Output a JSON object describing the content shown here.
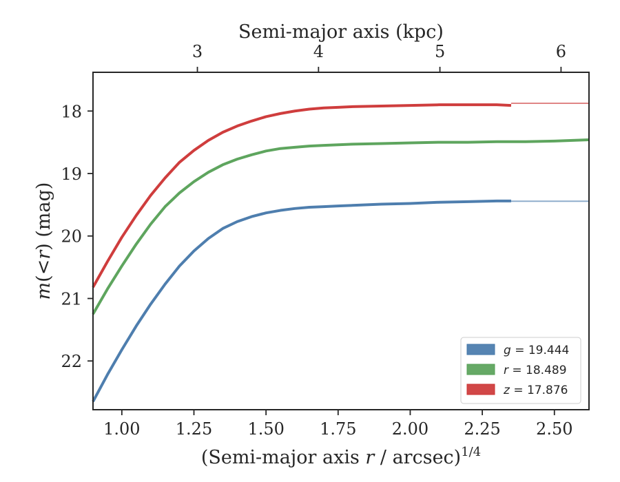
{
  "chart_data": {
    "type": "line",
    "top_axis_label": "Semi-major axis (kpc)",
    "xlabel": {
      "prefix": "(Semi-major axis ",
      "var": "r",
      "suffix": " / arcsec)",
      "sup": "1/4"
    },
    "ylabel": {
      "var1": "m",
      "mid": "(<",
      "var2": "r",
      "suffix": ") (mag)"
    },
    "xlim": [
      0.9,
      2.62
    ],
    "ylim": [
      22.78,
      17.38
    ],
    "y_inverted": true,
    "x_ticks": [
      {
        "value": 1.0,
        "label": "1.00"
      },
      {
        "value": 1.25,
        "label": "1.25"
      },
      {
        "value": 1.5,
        "label": "1.50"
      },
      {
        "value": 1.75,
        "label": "1.75"
      },
      {
        "value": 2.0,
        "label": "2.00"
      },
      {
        "value": 2.25,
        "label": "2.25"
      },
      {
        "value": 2.5,
        "label": "2.50"
      }
    ],
    "y_ticks": [
      {
        "value": 18,
        "label": "18"
      },
      {
        "value": 19,
        "label": "19"
      },
      {
        "value": 20,
        "label": "20"
      },
      {
        "value": 21,
        "label": "21"
      },
      {
        "value": 22,
        "label": "22"
      }
    ],
    "top_ticks": [
      {
        "x": 1.262,
        "label": "3"
      },
      {
        "x": 1.682,
        "label": "4"
      },
      {
        "x": 2.103,
        "label": "5"
      },
      {
        "x": 2.523,
        "label": "6"
      }
    ],
    "grid": false,
    "legend_position": "lower-right",
    "series": [
      {
        "name": "g",
        "legend_value": "19.444",
        "color": "#4477aa",
        "x": [
          0.9,
          0.95,
          1.0,
          1.05,
          1.1,
          1.15,
          1.2,
          1.25,
          1.3,
          1.35,
          1.4,
          1.45,
          1.5,
          1.55,
          1.6,
          1.65,
          1.7,
          1.75,
          1.8,
          1.9,
          2.0,
          2.1,
          2.2,
          2.3,
          2.35
        ],
        "y": [
          22.65,
          22.22,
          21.82,
          21.44,
          21.09,
          20.77,
          20.48,
          20.24,
          20.04,
          19.88,
          19.77,
          19.69,
          19.63,
          19.59,
          19.56,
          19.54,
          19.53,
          19.52,
          19.51,
          19.49,
          19.48,
          19.46,
          19.45,
          19.44,
          19.44
        ],
        "extrap_x": [
          2.35,
          2.62
        ],
        "extrap_y": [
          19.444,
          19.444
        ]
      },
      {
        "name": "r",
        "legend_value": "18.489",
        "color": "#55a055",
        "x": [
          0.9,
          0.95,
          1.0,
          1.05,
          1.1,
          1.15,
          1.2,
          1.25,
          1.3,
          1.35,
          1.4,
          1.45,
          1.5,
          1.55,
          1.6,
          1.65,
          1.7,
          1.75,
          1.8,
          1.9,
          2.0,
          2.1,
          2.2,
          2.3,
          2.4,
          2.5,
          2.62
        ],
        "y": [
          21.25,
          20.85,
          20.48,
          20.13,
          19.81,
          19.53,
          19.31,
          19.13,
          18.98,
          18.86,
          18.77,
          18.7,
          18.64,
          18.6,
          18.58,
          18.56,
          18.55,
          18.54,
          18.53,
          18.52,
          18.51,
          18.5,
          18.5,
          18.49,
          18.49,
          18.48,
          18.46
        ]
      },
      {
        "name": "z",
        "legend_value": "17.876",
        "color": "#cc3333",
        "x": [
          0.9,
          0.95,
          1.0,
          1.05,
          1.1,
          1.15,
          1.2,
          1.25,
          1.3,
          1.35,
          1.4,
          1.45,
          1.5,
          1.55,
          1.6,
          1.65,
          1.7,
          1.75,
          1.8,
          1.9,
          2.0,
          2.1,
          2.2,
          2.3,
          2.35
        ],
        "y": [
          20.82,
          20.41,
          20.02,
          19.67,
          19.35,
          19.07,
          18.82,
          18.63,
          18.47,
          18.34,
          18.24,
          18.16,
          18.09,
          18.04,
          18.0,
          17.97,
          17.95,
          17.94,
          17.93,
          17.92,
          17.91,
          17.9,
          17.9,
          17.9,
          17.91
        ],
        "extrap_x": [
          2.35,
          2.62
        ],
        "extrap_y": [
          17.876,
          17.876
        ]
      }
    ]
  }
}
